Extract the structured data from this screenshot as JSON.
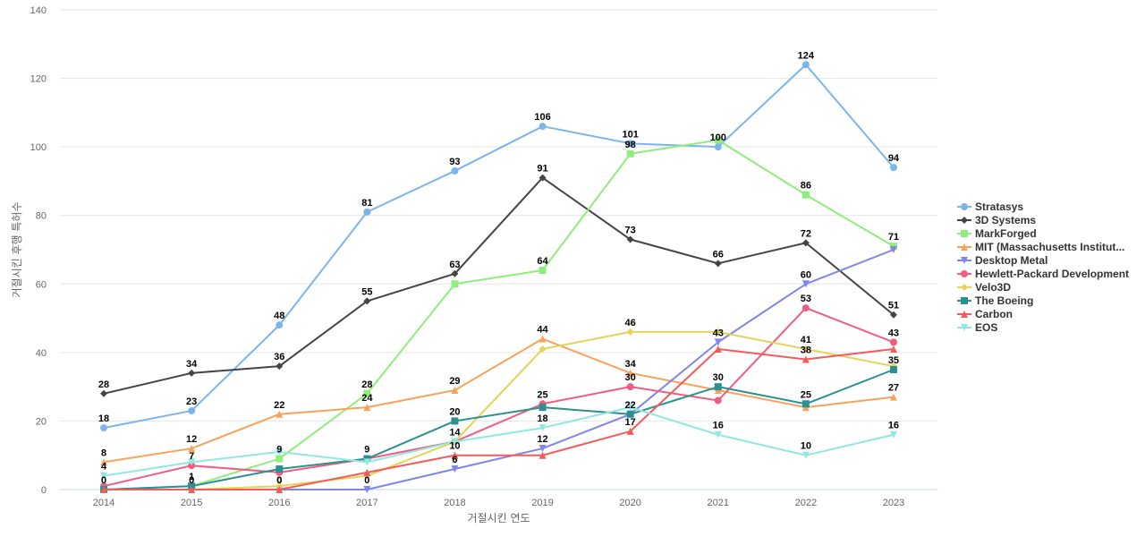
{
  "chart_data": {
    "type": "line",
    "title": "",
    "xlabel": "거절시킨 연도",
    "ylabel": "거절시킨 후행 특허수",
    "x": [
      2014,
      2015,
      2016,
      2017,
      2018,
      2019,
      2020,
      2021,
      2022,
      2023
    ],
    "ylim": [
      0,
      140
    ],
    "yticks": [
      0,
      20,
      40,
      60,
      80,
      100,
      120,
      140
    ],
    "grid": true,
    "legend_position": "right",
    "series": [
      {
        "name": "Stratasys",
        "color": "#7cb5ec",
        "marker": "circle",
        "values": [
          18,
          23,
          48,
          81,
          93,
          106,
          101,
          100,
          124,
          94
        ],
        "labels": [
          true,
          true,
          true,
          true,
          true,
          true,
          true,
          true,
          true,
          true
        ]
      },
      {
        "name": "3D Systems",
        "color": "#434348",
        "marker": "diamond",
        "values": [
          28,
          34,
          36,
          55,
          63,
          91,
          73,
          66,
          72,
          51
        ],
        "labels": [
          true,
          true,
          true,
          true,
          true,
          true,
          true,
          true,
          true,
          true
        ]
      },
      {
        "name": "MarkForged",
        "color": "#90ed7d",
        "marker": "square",
        "values": [
          0,
          1,
          9,
          28,
          60,
          64,
          98,
          102,
          86,
          71
        ],
        "labels": [
          false,
          false,
          true,
          true,
          false,
          true,
          true,
          false,
          true,
          true
        ]
      },
      {
        "name": "MIT (Massachusetts Institut...",
        "color": "#f7a35c",
        "marker": "triangle",
        "values": [
          8,
          12,
          22,
          24,
          29,
          44,
          34,
          29,
          24,
          27
        ],
        "labels": [
          true,
          true,
          true,
          true,
          true,
          true,
          true,
          false,
          false,
          true
        ]
      },
      {
        "name": "Desktop Metal",
        "color": "#8085e9",
        "marker": "triangle-down",
        "values": [
          0,
          0,
          0,
          0,
          6,
          12,
          22,
          43,
          60,
          70
        ],
        "labels": [
          false,
          false,
          true,
          true,
          true,
          true,
          false,
          true,
          true,
          false
        ]
      },
      {
        "name": "Hewlett-Packard Development",
        "color": "#f15c80",
        "marker": "circle",
        "values": [
          1,
          7,
          5,
          9,
          14,
          25,
          30,
          26,
          53,
          43
        ],
        "labels": [
          false,
          true,
          false,
          false,
          false,
          true,
          true,
          false,
          true,
          true
        ]
      },
      {
        "name": "Velo3D",
        "color": "#e4d354",
        "marker": "diamond",
        "values": [
          0,
          0,
          1,
          4,
          14,
          41,
          46,
          46,
          41,
          36
        ],
        "labels": [
          false,
          false,
          false,
          false,
          true,
          false,
          true,
          false,
          true,
          false
        ]
      },
      {
        "name": "The Boeing",
        "color": "#2b908f",
        "marker": "square",
        "values": [
          0,
          1,
          6,
          9,
          20,
          24,
          22,
          30,
          25,
          35
        ],
        "labels": [
          true,
          true,
          false,
          true,
          true,
          false,
          true,
          true,
          true,
          true
        ]
      },
      {
        "name": "Carbon",
        "color": "#f45b5b",
        "marker": "triangle",
        "values": [
          0,
          0,
          0,
          5,
          10,
          10,
          17,
          41,
          38,
          41
        ],
        "labels": [
          false,
          true,
          true,
          false,
          true,
          false,
          true,
          false,
          true,
          false
        ]
      },
      {
        "name": "EOS",
        "color": "#91e8e1",
        "marker": "triangle-down",
        "values": [
          4,
          8,
          11,
          8,
          14,
          18,
          24,
          16,
          10,
          16
        ],
        "labels": [
          true,
          false,
          false,
          false,
          false,
          true,
          false,
          true,
          true,
          true
        ]
      }
    ]
  }
}
